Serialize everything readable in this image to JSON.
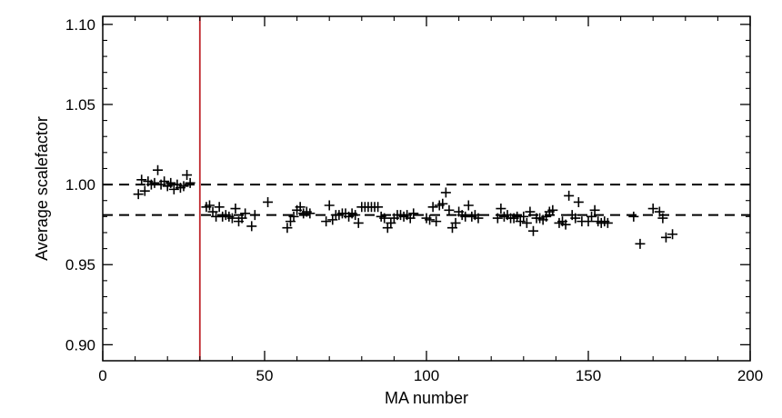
{
  "chart_data": {
    "type": "scatter",
    "xlabel": "MA number",
    "ylabel": "Average scalefactor",
    "xlim": [
      0,
      200
    ],
    "ylim": [
      0.89,
      1.105
    ],
    "x_ticks": [
      0,
      50,
      100,
      150,
      200
    ],
    "y_ticks": [
      0.9,
      0.95,
      1.0,
      1.05,
      1.1
    ],
    "x_tick_labels": [
      "0",
      "50",
      "100",
      "150",
      "200"
    ],
    "y_tick_labels": [
      "0.90",
      "0.95",
      "1.00",
      "1.05",
      "1.10"
    ],
    "marker": "plus",
    "grid": false,
    "reference_lines": [
      {
        "orientation": "horizontal",
        "y": 1.0,
        "style": "dashed",
        "color": "#000000"
      },
      {
        "orientation": "horizontal",
        "y": 0.981,
        "style": "dashed",
        "color": "#000000"
      },
      {
        "orientation": "vertical",
        "x": 30,
        "style": "solid",
        "color": "#c0282d"
      }
    ],
    "points": [
      [
        11,
        0.994
      ],
      [
        12,
        1.003
      ],
      [
        13,
        0.996
      ],
      [
        14,
        1.002
      ],
      [
        15,
        1.0
      ],
      [
        16,
        1.001
      ],
      [
        17,
        1.009
      ],
      [
        18,
        1.0
      ],
      [
        19,
        1.002
      ],
      [
        20,
        0.999
      ],
      [
        21,
        1.001
      ],
      [
        22,
        0.997
      ],
      [
        23,
        1.0
      ],
      [
        24,
        0.998
      ],
      [
        25,
        0.999
      ],
      [
        26,
        1.006
      ],
      [
        27,
        1.001
      ],
      [
        32,
        0.986
      ],
      [
        33,
        0.987
      ],
      [
        34,
        0.983
      ],
      [
        35,
        0.98
      ],
      [
        36,
        0.986
      ],
      [
        37,
        0.98
      ],
      [
        38,
        0.981
      ],
      [
        39,
        0.98
      ],
      [
        40,
        0.979
      ],
      [
        41,
        0.985
      ],
      [
        42,
        0.977
      ],
      [
        43,
        0.979
      ],
      [
        44,
        0.982
      ],
      [
        46,
        0.974
      ],
      [
        47,
        0.981
      ],
      [
        51,
        0.989
      ],
      [
        57,
        0.973
      ],
      [
        58,
        0.977
      ],
      [
        59,
        0.98
      ],
      [
        60,
        0.984
      ],
      [
        61,
        0.986
      ],
      [
        62,
        0.982
      ],
      [
        63,
        0.983
      ],
      [
        64,
        0.982
      ],
      [
        69,
        0.977
      ],
      [
        70,
        0.987
      ],
      [
        71,
        0.978
      ],
      [
        72,
        0.981
      ],
      [
        73,
        0.981
      ],
      [
        74,
        0.982
      ],
      [
        75,
        0.982
      ],
      [
        76,
        0.98
      ],
      [
        77,
        0.982
      ],
      [
        78,
        0.981
      ],
      [
        79,
        0.976
      ],
      [
        80,
        0.986
      ],
      [
        81,
        0.986
      ],
      [
        82,
        0.986
      ],
      [
        83,
        0.986
      ],
      [
        84,
        0.986
      ],
      [
        85,
        0.986
      ],
      [
        86,
        0.98
      ],
      [
        87,
        0.979
      ],
      [
        88,
        0.973
      ],
      [
        89,
        0.976
      ],
      [
        90,
        0.979
      ],
      [
        91,
        0.981
      ],
      [
        92,
        0.981
      ],
      [
        93,
        0.98
      ],
      [
        94,
        0.981
      ],
      [
        95,
        0.979
      ],
      [
        96,
        0.982
      ],
      [
        100,
        0.979
      ],
      [
        101,
        0.978
      ],
      [
        102,
        0.986
      ],
      [
        103,
        0.977
      ],
      [
        104,
        0.987
      ],
      [
        105,
        0.988
      ],
      [
        106,
        0.995
      ],
      [
        107,
        0.984
      ],
      [
        108,
        0.973
      ],
      [
        109,
        0.976
      ],
      [
        110,
        0.983
      ],
      [
        111,
        0.981
      ],
      [
        112,
        0.98
      ],
      [
        113,
        0.987
      ],
      [
        114,
        0.98
      ],
      [
        115,
        0.981
      ],
      [
        116,
        0.979
      ],
      [
        122,
        0.979
      ],
      [
        123,
        0.985
      ],
      [
        124,
        0.98
      ],
      [
        125,
        0.981
      ],
      [
        126,
        0.979
      ],
      [
        127,
        0.979
      ],
      [
        128,
        0.98
      ],
      [
        129,
        0.977
      ],
      [
        130,
        0.98
      ],
      [
        131,
        0.976
      ],
      [
        132,
        0.983
      ],
      [
        133,
        0.971
      ],
      [
        134,
        0.979
      ],
      [
        135,
        0.979
      ],
      [
        136,
        0.978
      ],
      [
        137,
        0.98
      ],
      [
        138,
        0.983
      ],
      [
        139,
        0.984
      ],
      [
        141,
        0.976
      ],
      [
        142,
        0.977
      ],
      [
        143,
        0.975
      ],
      [
        144,
        0.993
      ],
      [
        145,
        0.981
      ],
      [
        146,
        0.979
      ],
      [
        147,
        0.989
      ],
      [
        148,
        0.977
      ],
      [
        150,
        0.977
      ],
      [
        151,
        0.98
      ],
      [
        152,
        0.984
      ],
      [
        153,
        0.977
      ],
      [
        154,
        0.976
      ],
      [
        155,
        0.977
      ],
      [
        156,
        0.976
      ],
      [
        164,
        0.98
      ],
      [
        166,
        0.963
      ],
      [
        170,
        0.985
      ],
      [
        172,
        0.983
      ],
      [
        173,
        0.979
      ],
      [
        174,
        0.967
      ],
      [
        176,
        0.969
      ]
    ]
  }
}
